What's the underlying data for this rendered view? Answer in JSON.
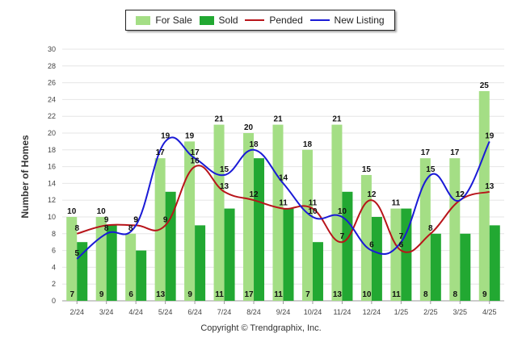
{
  "legend": {
    "for_sale": "For Sale",
    "sold": "Sold",
    "pended": "Pended",
    "new_listing": "New Listing"
  },
  "footer": "Copyright © Trendgraphix, Inc.",
  "colors": {
    "for_sale": "#a4de85",
    "sold": "#22a832",
    "pended": "#b8141a",
    "new_listing": "#1a1ad6"
  },
  "chart_data": {
    "type": "bar",
    "ylabel": "Number of Homes",
    "xlabel": "",
    "ylim": [
      0,
      30
    ],
    "yticks": [
      "0",
      "2",
      "4",
      "6",
      "8",
      "10",
      "12",
      "14",
      "16",
      "18",
      "20",
      "22",
      "24",
      "26",
      "28",
      "30"
    ],
    "grid": true,
    "legend_position": "top",
    "categories": [
      "2/24",
      "3/24",
      "4/24",
      "5/24",
      "6/24",
      "7/24",
      "8/24",
      "9/24",
      "10/24",
      "11/24",
      "12/24",
      "1/25",
      "2/25",
      "3/25",
      "4/25"
    ],
    "series": [
      {
        "name": "For Sale",
        "type": "bar",
        "values": [
          10,
          10,
          8,
          17,
          19,
          21,
          20,
          21,
          18,
          21,
          15,
          11,
          17,
          17,
          25
        ]
      },
      {
        "name": "Sold",
        "type": "bar",
        "values": [
          7,
          9,
          6,
          13,
          9,
          11,
          17,
          11,
          7,
          13,
          10,
          11,
          8,
          8,
          9
        ]
      },
      {
        "name": "Pended",
        "type": "line",
        "values": [
          8,
          9,
          9,
          9,
          16,
          13,
          12,
          11,
          11,
          7,
          12,
          6,
          8,
          12,
          13
        ]
      },
      {
        "name": "New Listing",
        "type": "line",
        "values": [
          5,
          8,
          9,
          19,
          17,
          15,
          18,
          14,
          10,
          10,
          6,
          7,
          15,
          12,
          19
        ]
      }
    ]
  }
}
